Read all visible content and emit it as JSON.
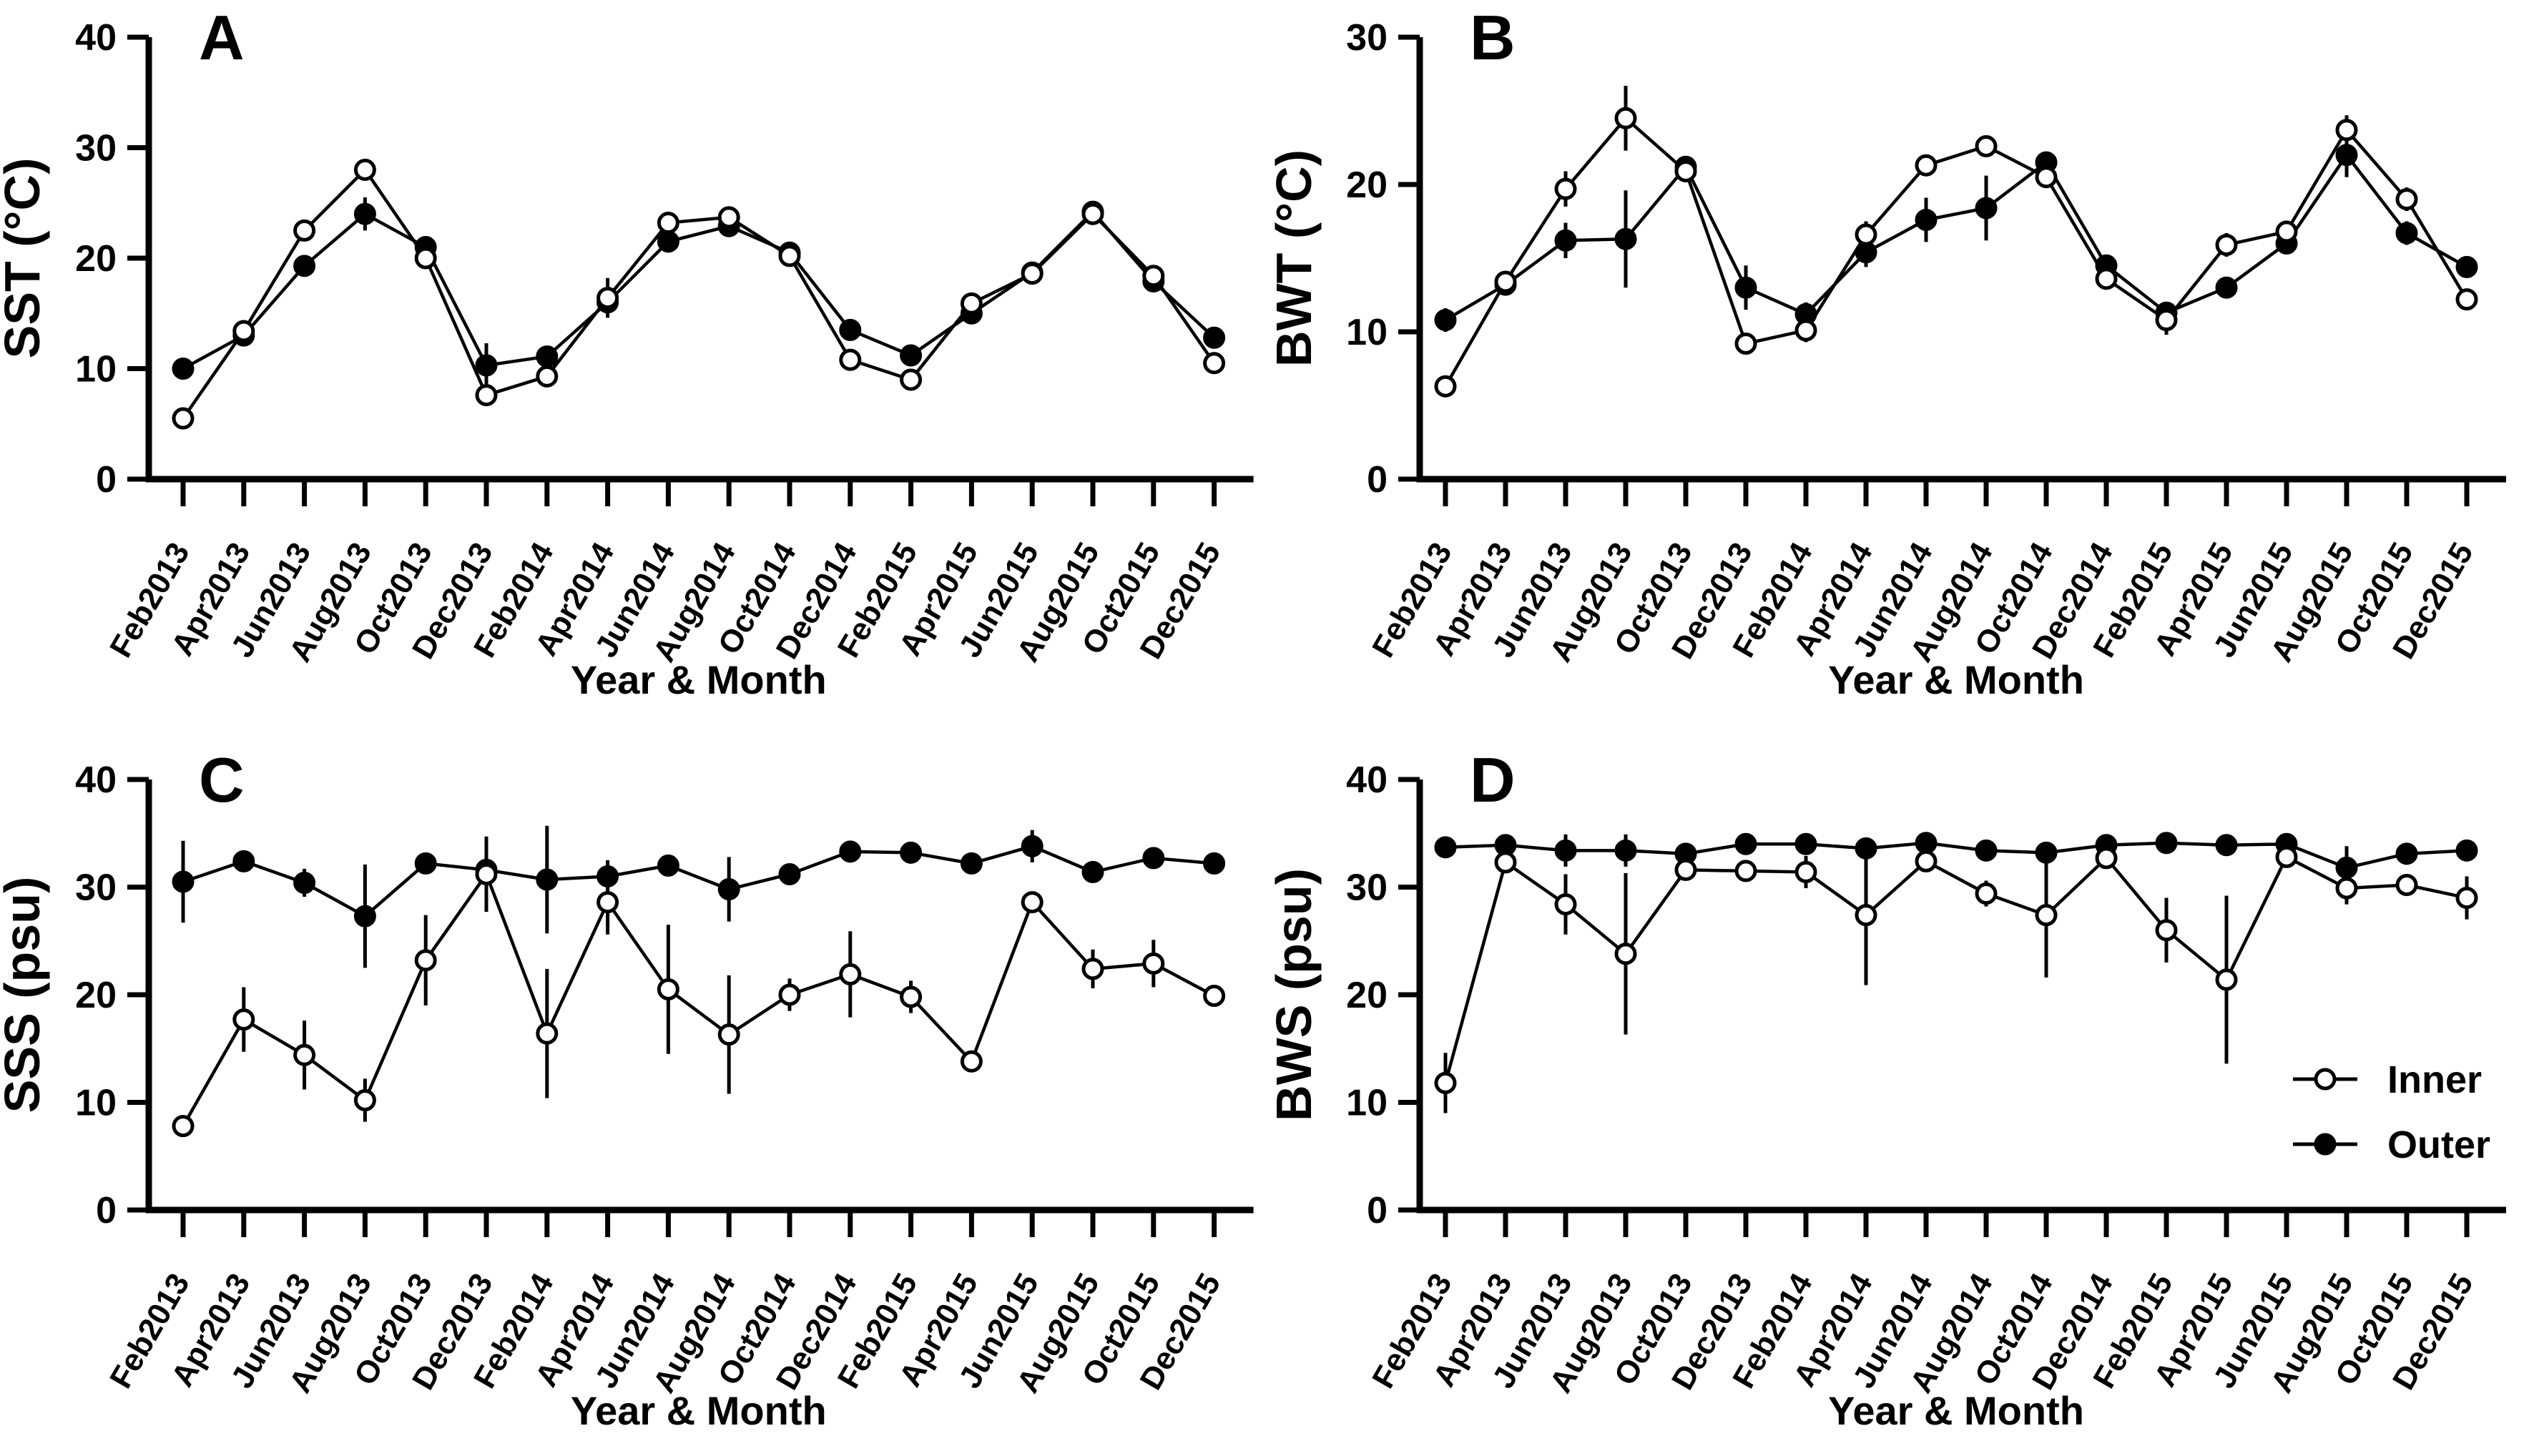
{
  "figure": {
    "background": "#ffffff",
    "ink_color": "#000000",
    "xlabel": "Year & Month",
    "categories": [
      "Feb2013",
      "Apr2013",
      "Jun2013",
      "Aug2013",
      "Oct2013",
      "Dec2013",
      "Feb2014",
      "Apr2014",
      "Jun2014",
      "Aug2014",
      "Oct2014",
      "Dec2014",
      "Feb2015",
      "Apr2015",
      "Jun2015",
      "Aug2015",
      "Oct2015",
      "Dec2015"
    ],
    "legend": {
      "location": "panel-D-right",
      "items": [
        {
          "label": "Inner",
          "marker": "open-circle"
        },
        {
          "label": "Outer",
          "marker": "filled-circle"
        }
      ]
    }
  },
  "chart_data": [
    {
      "type": "line",
      "panel": "A",
      "ylabel": "SST (°C)",
      "xlabel": "Year & Month",
      "ylim": [
        0,
        40
      ],
      "yticks": [
        0,
        10,
        20,
        30,
        40
      ],
      "grid": false,
      "categories": [
        "Feb2013",
        "Apr2013",
        "Jun2013",
        "Aug2013",
        "Oct2013",
        "Dec2013",
        "Feb2014",
        "Apr2014",
        "Jun2014",
        "Aug2014",
        "Oct2014",
        "Dec2014",
        "Feb2015",
        "Apr2015",
        "Jun2015",
        "Aug2015",
        "Oct2015",
        "Dec2015"
      ],
      "series": [
        {
          "name": "Inner",
          "marker": "open-circle",
          "values": [
            5.5,
            13.4,
            22.5,
            28.0,
            20.0,
            7.6,
            9.3,
            16.4,
            23.2,
            23.7,
            20.2,
            10.8,
            9.0,
            15.9,
            18.6,
            24.0,
            18.4,
            10.5
          ],
          "errors": [
            0.5,
            0.3,
            0.8,
            0.7,
            0.8,
            0.6,
            0.5,
            1.8,
            0.5,
            0.4,
            0.4,
            0.5,
            0.6,
            0.4,
            0.4,
            0.3,
            0.5,
            0.6
          ]
        },
        {
          "name": "Outer",
          "marker": "filled-circle",
          "values": [
            10.0,
            13.0,
            19.3,
            24.0,
            21.0,
            10.3,
            11.1,
            16.0,
            21.5,
            22.9,
            20.5,
            13.5,
            11.2,
            15.0,
            18.7,
            24.2,
            17.9,
            12.8
          ],
          "errors": [
            0.3,
            0.3,
            0.4,
            1.5,
            0.4,
            2.0,
            0.4,
            0.5,
            0.5,
            0.4,
            0.4,
            0.4,
            0.4,
            0.4,
            0.4,
            0.3,
            0.4,
            0.4
          ]
        }
      ]
    },
    {
      "type": "line",
      "panel": "B",
      "ylabel": "BWT (°C)",
      "xlabel": "Year & Month",
      "ylim": [
        0,
        30
      ],
      "yticks": [
        0,
        10,
        20,
        30
      ],
      "grid": false,
      "categories": [
        "Feb2013",
        "Apr2013",
        "Jun2013",
        "Aug2013",
        "Oct2013",
        "Dec2013",
        "Feb2014",
        "Apr2014",
        "Jun2014",
        "Aug2014",
        "Oct2014",
        "Dec2014",
        "Feb2015",
        "Apr2015",
        "Jun2015",
        "Aug2015",
        "Oct2015",
        "Dec2015"
      ],
      "series": [
        {
          "name": "Inner",
          "marker": "open-circle",
          "values": [
            6.3,
            13.4,
            19.7,
            24.5,
            20.9,
            9.2,
            10.1,
            16.6,
            21.3,
            22.6,
            20.5,
            13.6,
            10.8,
            15.9,
            16.8,
            23.7,
            19.0,
            12.2
          ],
          "errors": [
            0.4,
            0.3,
            1.2,
            2.2,
            0.4,
            0.5,
            0.8,
            0.9,
            0.6,
            0.4,
            0.5,
            0.4,
            1.0,
            0.8,
            0.5,
            1.0,
            0.8,
            0.7
          ]
        },
        {
          "name": "Outer",
          "marker": "filled-circle",
          "values": [
            10.8,
            13.2,
            16.2,
            16.3,
            21.2,
            13.0,
            11.2,
            15.4,
            17.6,
            18.4,
            21.5,
            14.5,
            11.3,
            13.0,
            16.0,
            22.0,
            16.7,
            14.4
          ],
          "errors": [
            0.8,
            0.3,
            1.2,
            3.3,
            0.4,
            1.5,
            0.8,
            1.0,
            1.5,
            2.2,
            0.5,
            0.4,
            0.6,
            0.5,
            0.5,
            1.5,
            0.8,
            0.5
          ]
        }
      ]
    },
    {
      "type": "line",
      "panel": "C",
      "ylabel": "SSS (psu)",
      "xlabel": "Year & Month",
      "ylim": [
        0,
        40
      ],
      "yticks": [
        0,
        10,
        20,
        30,
        40
      ],
      "grid": false,
      "categories": [
        "Feb2013",
        "Apr2013",
        "Jun2013",
        "Aug2013",
        "Oct2013",
        "Dec2013",
        "Feb2014",
        "Apr2014",
        "Jun2014",
        "Aug2014",
        "Oct2014",
        "Dec2014",
        "Feb2015",
        "Apr2015",
        "Jun2015",
        "Aug2015",
        "Oct2015",
        "Dec2015"
      ],
      "series": [
        {
          "name": "Inner",
          "marker": "open-circle",
          "values": [
            7.8,
            17.7,
            14.4,
            10.2,
            23.2,
            31.2,
            16.4,
            28.6,
            20.5,
            16.3,
            20.0,
            21.9,
            19.8,
            13.8,
            28.6,
            22.4,
            22.9,
            19.9
          ],
          "errors": [
            1.0,
            3.0,
            3.2,
            2.0,
            4.2,
            3.5,
            6.0,
            3.0,
            6.0,
            5.5,
            1.5,
            4.0,
            1.5,
            1.0,
            0.6,
            1.8,
            2.2,
            0.8
          ]
        },
        {
          "name": "Outer",
          "marker": "filled-circle",
          "values": [
            30.5,
            32.4,
            30.4,
            27.3,
            32.2,
            31.6,
            30.7,
            31.0,
            32.0,
            29.8,
            31.2,
            33.3,
            33.2,
            32.2,
            33.8,
            31.4,
            32.7,
            32.2
          ],
          "errors": [
            3.8,
            1.0,
            1.3,
            4.8,
            0.6,
            3.0,
            5.0,
            1.5,
            1.0,
            3.0,
            0.8,
            1.0,
            0.7,
            0.8,
            1.5,
            1.0,
            1.0,
            1.0
          ]
        }
      ]
    },
    {
      "type": "line",
      "panel": "D",
      "ylabel": "BWS (psu)",
      "xlabel": "Year & Month",
      "ylim": [
        0,
        40
      ],
      "yticks": [
        0,
        10,
        20,
        30,
        40
      ],
      "grid": false,
      "categories": [
        "Feb2013",
        "Apr2013",
        "Jun2013",
        "Aug2013",
        "Oct2013",
        "Dec2013",
        "Feb2014",
        "Apr2014",
        "Jun2014",
        "Aug2014",
        "Oct2014",
        "Dec2014",
        "Feb2015",
        "Apr2015",
        "Jun2015",
        "Aug2015",
        "Oct2015",
        "Dec2015"
      ],
      "series": [
        {
          "name": "Inner",
          "marker": "open-circle",
          "values": [
            11.8,
            32.3,
            28.4,
            23.8,
            31.6,
            31.5,
            31.4,
            27.4,
            32.4,
            29.4,
            27.4,
            32.7,
            26.0,
            21.4,
            32.8,
            29.9,
            30.2,
            29.0
          ],
          "errors": [
            2.8,
            0.5,
            2.8,
            7.5,
            0.8,
            0.5,
            1.5,
            6.5,
            0.8,
            1.2,
            5.8,
            0.5,
            3.0,
            7.8,
            0.5,
            1.5,
            1.0,
            2.0
          ]
        },
        {
          "name": "Outer",
          "marker": "filled-circle",
          "values": [
            33.7,
            33.9,
            33.4,
            33.4,
            33.1,
            34.0,
            34.0,
            33.6,
            34.1,
            33.4,
            33.2,
            33.9,
            34.1,
            33.9,
            34.0,
            31.8,
            33.1,
            33.4
          ],
          "errors": [
            0.3,
            0.4,
            1.5,
            1.5,
            0.5,
            0.3,
            0.3,
            0.4,
            0.3,
            0.5,
            0.5,
            0.3,
            0.4,
            0.3,
            0.3,
            2.0,
            0.5,
            0.3
          ]
        }
      ]
    }
  ]
}
